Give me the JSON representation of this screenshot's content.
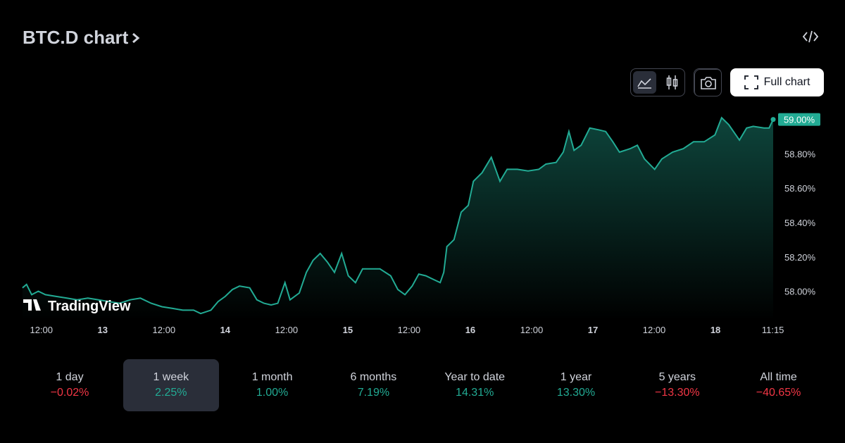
{
  "header": {
    "title": "BTC.D chart"
  },
  "toolbar": {
    "full_chart": "Full chart"
  },
  "watermark": "TradingView",
  "chart_data": {
    "type": "line",
    "color": "#22ab94",
    "x": [
      8.3,
      9.1,
      10.1,
      11.4,
      12.8,
      14.9,
      17.0,
      19.0,
      21.1,
      23.2,
      25.2,
      27.3,
      29.4,
      31.4,
      33.5,
      35.6,
      37.7,
      39.7,
      41.8,
      43.2,
      45.2,
      46.6,
      48.0,
      49.4,
      50.8,
      52.8,
      54.2,
      55.6,
      57.0,
      58.3,
      59.7,
      60.7,
      62.5,
      63.9,
      65.2,
      66.6,
      68.0,
      69.4,
      70.8,
      72.1,
      73.5,
      74.9,
      76.3,
      78.3,
      80.4,
      81.8,
      83.2,
      84.6,
      85.9,
      87.3,
      88.7,
      90.1,
      90.8,
      91.4,
      92.8,
      94.2,
      95.6,
      96.6,
      98.3,
      100.1,
      101.8,
      103.2,
      105.2,
      107.3,
      109.4,
      110.8,
      112.8,
      114.2,
      115.3,
      116.3,
      117.7,
      119.4,
      121.1,
      122.5,
      123.9,
      125.2,
      127.3,
      128.7,
      130.1,
      132.1,
      133.5,
      135.6,
      137.7,
      139.7,
      141.8,
      143.9,
      145.2,
      146.6,
      148.7,
      150.1,
      151.4,
      153.5,
      154.5,
      155.3
    ],
    "values": [
      58.02,
      58.04,
      57.98,
      58.0,
      57.98,
      57.97,
      57.96,
      57.95,
      57.96,
      57.95,
      57.94,
      57.93,
      57.95,
      57.96,
      57.93,
      57.91,
      57.9,
      57.89,
      57.89,
      57.87,
      57.89,
      57.94,
      57.97,
      58.01,
      58.03,
      58.02,
      57.95,
      57.93,
      57.92,
      57.93,
      58.05,
      57.95,
      57.99,
      58.11,
      58.18,
      58.22,
      58.17,
      58.11,
      58.22,
      58.09,
      58.05,
      58.13,
      58.13,
      58.13,
      58.09,
      58.01,
      57.98,
      58.03,
      58.1,
      58.09,
      58.07,
      58.05,
      58.11,
      58.26,
      58.3,
      58.46,
      58.5,
      58.64,
      58.69,
      58.78,
      58.64,
      58.71,
      58.71,
      58.7,
      58.71,
      58.74,
      58.75,
      58.81,
      58.93,
      58.82,
      58.85,
      58.95,
      58.94,
      58.93,
      58.87,
      58.81,
      58.83,
      58.85,
      58.77,
      58.71,
      58.77,
      58.81,
      58.83,
      58.87,
      58.87,
      58.91,
      59.01,
      58.97,
      58.88,
      58.95,
      58.96,
      58.95,
      58.95,
      59.0
    ],
    "last_price": {
      "value": 59.0,
      "label": "59.00%"
    },
    "xlim": [
      3.9,
      155.3
    ],
    "ylim": [
      57.83,
      59.06
    ],
    "xticks": [
      {
        "value": 12,
        "label": "12:00"
      },
      {
        "value": 24,
        "label": "13"
      },
      {
        "value": 36,
        "label": "12:00"
      },
      {
        "value": 48,
        "label": "14"
      },
      {
        "value": 60,
        "label": "12:00"
      },
      {
        "value": 72,
        "label": "15"
      },
      {
        "value": 84,
        "label": "12:00"
      },
      {
        "value": 96,
        "label": "16"
      },
      {
        "value": 108,
        "label": "12:00"
      },
      {
        "value": 120,
        "label": "17"
      },
      {
        "value": 132,
        "label": "12:00"
      },
      {
        "value": 144,
        "label": "18"
      },
      {
        "value": 155.25,
        "label": "11:15"
      }
    ],
    "yticks": [
      {
        "value": 58,
        "label": "58.00%"
      },
      {
        "value": 58.2,
        "label": "58.20%"
      },
      {
        "value": 58.4,
        "label": "58.40%"
      },
      {
        "value": 58.6,
        "label": "58.60%"
      },
      {
        "value": 58.8,
        "label": "58.80%"
      }
    ]
  },
  "periods": {
    "selected": 1,
    "items": [
      {
        "label": "1 day",
        "change": "−0.02%",
        "direction": "down"
      },
      {
        "label": "1 week",
        "change": "2.25%",
        "direction": "up"
      },
      {
        "label": "1 month",
        "change": "1.00%",
        "direction": "up"
      },
      {
        "label": "6 months",
        "change": "7.19%",
        "direction": "up"
      },
      {
        "label": "Year to date",
        "change": "14.31%",
        "direction": "up"
      },
      {
        "label": "1 year",
        "change": "13.30%",
        "direction": "up"
      },
      {
        "label": "5 years",
        "change": "−13.30%",
        "direction": "down"
      },
      {
        "label": "All time",
        "change": "−40.65%",
        "direction": "down"
      }
    ]
  }
}
